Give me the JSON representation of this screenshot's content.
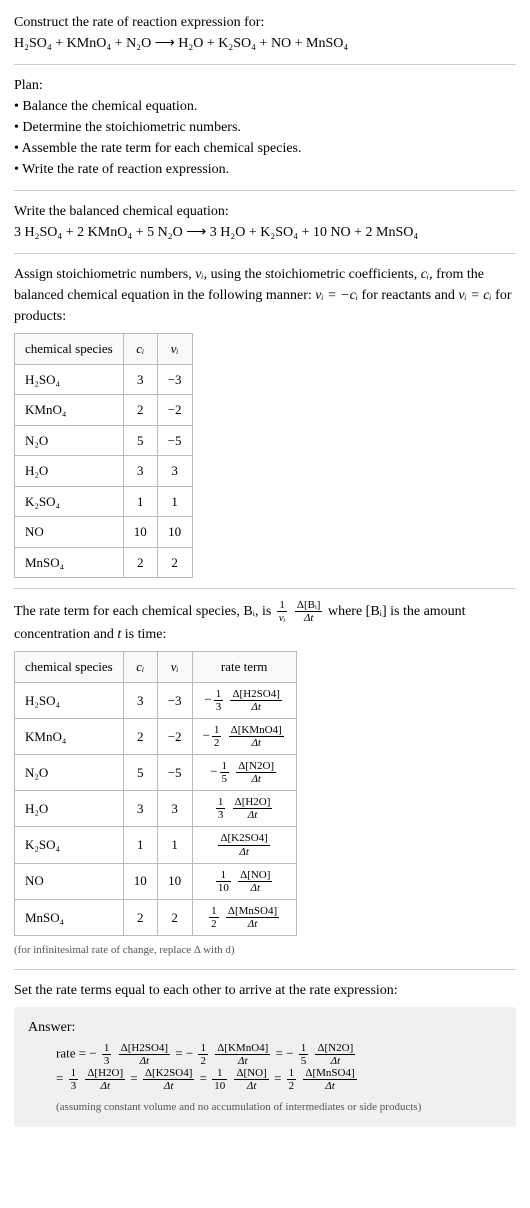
{
  "header": {
    "title": "Construct the rate of reaction expression for:",
    "equation": "H₂SO₄ + KMnO₄ + N₂O ⟶ H₂O + K₂SO₄ + NO + MnSO₄"
  },
  "plan": {
    "label": "Plan:",
    "items": [
      "• Balance the chemical equation.",
      "• Determine the stoichiometric numbers.",
      "• Assemble the rate term for each chemical species.",
      "• Write the rate of reaction expression."
    ]
  },
  "balanced": {
    "label": "Write the balanced chemical equation:",
    "equation": "3 H₂SO₄ + 2 KMnO₄ + 5 N₂O ⟶ 3 H₂O + K₂SO₄ + 10 NO + 2 MnSO₄"
  },
  "assign": {
    "text1": "Assign stoichiometric numbers, ",
    "nu": "νᵢ",
    "text2": ", using the stoichiometric coefficients, ",
    "c": "cᵢ",
    "text3": ", from the balanced chemical equation in the following manner: ",
    "rel1": "νᵢ = −cᵢ",
    "text4": " for reactants and ",
    "rel2": "νᵢ = cᵢ",
    "text5": " for products:"
  },
  "table1": {
    "headers": [
      "chemical species",
      "cᵢ",
      "νᵢ"
    ],
    "rows": [
      [
        "H₂SO₄",
        "3",
        "−3"
      ],
      [
        "KMnO₄",
        "2",
        "−2"
      ],
      [
        "N₂O",
        "5",
        "−5"
      ],
      [
        "H₂O",
        "3",
        "3"
      ],
      [
        "K₂SO₄",
        "1",
        "1"
      ],
      [
        "NO",
        "10",
        "10"
      ],
      [
        "MnSO₄",
        "2",
        "2"
      ]
    ]
  },
  "rateterm": {
    "text1": "The rate term for each chemical species, Bᵢ, is ",
    "frac1_num": "1",
    "frac1_den": "νᵢ",
    "frac2_num": "Δ[Bᵢ]",
    "frac2_den": "Δt",
    "text2": " where [Bᵢ] is the amount concentration and ",
    "t": "t",
    "text3": " is time:"
  },
  "table2": {
    "headers": [
      "chemical species",
      "cᵢ",
      "νᵢ",
      "rate term"
    ],
    "rows": [
      {
        "s": "H₂SO₄",
        "c": "3",
        "n": "−3",
        "sign": "−",
        "fn": "1",
        "fd": "3",
        "dn": "Δ[H2SO4]",
        "dd": "Δt"
      },
      {
        "s": "KMnO₄",
        "c": "2",
        "n": "−2",
        "sign": "−",
        "fn": "1",
        "fd": "2",
        "dn": "Δ[KMnO4]",
        "dd": "Δt"
      },
      {
        "s": "N₂O",
        "c": "5",
        "n": "−5",
        "sign": "−",
        "fn": "1",
        "fd": "5",
        "dn": "Δ[N2O]",
        "dd": "Δt"
      },
      {
        "s": "H₂O",
        "c": "3",
        "n": "3",
        "sign": "",
        "fn": "1",
        "fd": "3",
        "dn": "Δ[H2O]",
        "dd": "Δt"
      },
      {
        "s": "K₂SO₄",
        "c": "1",
        "n": "1",
        "sign": "",
        "fn": "",
        "fd": "",
        "dn": "Δ[K2SO4]",
        "dd": "Δt"
      },
      {
        "s": "NO",
        "c": "10",
        "n": "10",
        "sign": "",
        "fn": "1",
        "fd": "10",
        "dn": "Δ[NO]",
        "dd": "Δt"
      },
      {
        "s": "MnSO₄",
        "c": "2",
        "n": "2",
        "sign": "",
        "fn": "1",
        "fd": "2",
        "dn": "Δ[MnSO4]",
        "dd": "Δt"
      }
    ]
  },
  "note": "(for infinitesimal rate of change, replace Δ with d)",
  "setequal": "Set the rate terms equal to each other to arrive at the rate expression:",
  "answer": {
    "label": "Answer:",
    "line1_prefix": "rate = ",
    "terms1": [
      {
        "sign": "−",
        "fn": "1",
        "fd": "3",
        "dn": "Δ[H2SO4]",
        "dd": "Δt"
      },
      {
        "sign": "= −",
        "fn": "1",
        "fd": "2",
        "dn": "Δ[KMnO4]",
        "dd": "Δt"
      },
      {
        "sign": "= −",
        "fn": "1",
        "fd": "5",
        "dn": "Δ[N2O]",
        "dd": "Δt"
      }
    ],
    "line2_prefix": "= ",
    "terms2": [
      {
        "sign": "",
        "fn": "1",
        "fd": "3",
        "dn": "Δ[H2O]",
        "dd": "Δt"
      },
      {
        "sign": "= ",
        "fn": "",
        "fd": "",
        "dn": "Δ[K2SO4]",
        "dd": "Δt"
      },
      {
        "sign": "= ",
        "fn": "1",
        "fd": "10",
        "dn": "Δ[NO]",
        "dd": "Δt"
      },
      {
        "sign": "= ",
        "fn": "1",
        "fd": "2",
        "dn": "Δ[MnSO4]",
        "dd": "Δt"
      }
    ],
    "footnote": "(assuming constant volume and no accumulation of intermediates or side products)"
  },
  "colors": {
    "border": "#bbb",
    "answer_bg": "#f0f0ee"
  }
}
